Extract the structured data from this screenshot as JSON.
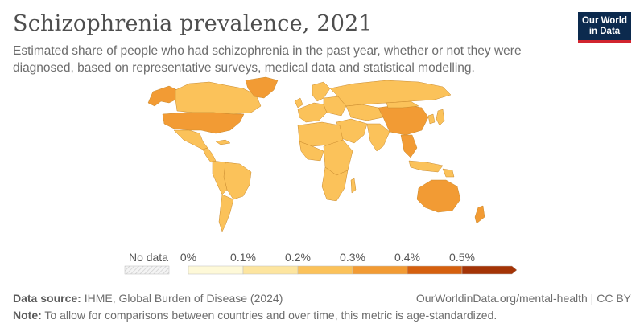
{
  "header": {
    "title": "Schizophrenia prevalence, 2021",
    "subtitle": "Estimated share of people who had schizophrenia in the past year, whether or not they were diagnosed, based on representative surveys, medical data and statistical modelling."
  },
  "logo": {
    "line1": "Our World",
    "line2": "in Data"
  },
  "legend": {
    "no_data_label": "No data",
    "ticks": [
      "0%",
      "0.1%",
      "0.2%",
      "0.3%",
      "0.4%",
      "0.5%"
    ],
    "bins": [
      {
        "from": 0.0,
        "to": 0.1,
        "color": "#fef9d8"
      },
      {
        "from": 0.1,
        "to": 0.2,
        "color": "#fde59f"
      },
      {
        "from": 0.2,
        "to": 0.3,
        "color": "#fbc25a"
      },
      {
        "from": 0.3,
        "to": 0.4,
        "color": "#f29b34"
      },
      {
        "from": 0.4,
        "to": 0.5,
        "color": "#d5600e"
      },
      {
        "from": 0.5,
        "to": 0.6,
        "color": "#a43406"
      }
    ]
  },
  "colors": {
    "no_data": "#f4f4f4",
    "border": "#a0a0a0",
    "logo_bg": "#0c2a4e",
    "logo_accent": "#d1242f"
  },
  "footer": {
    "source_label": "Data source:",
    "source_text": "IHME, Global Burden of Disease (2024)",
    "url": "OurWorldinData.org/mental-health | CC BY",
    "note_label": "Note:",
    "note_text": "To allow for comparisons between countries and over time, this metric is age-standardized."
  }
}
